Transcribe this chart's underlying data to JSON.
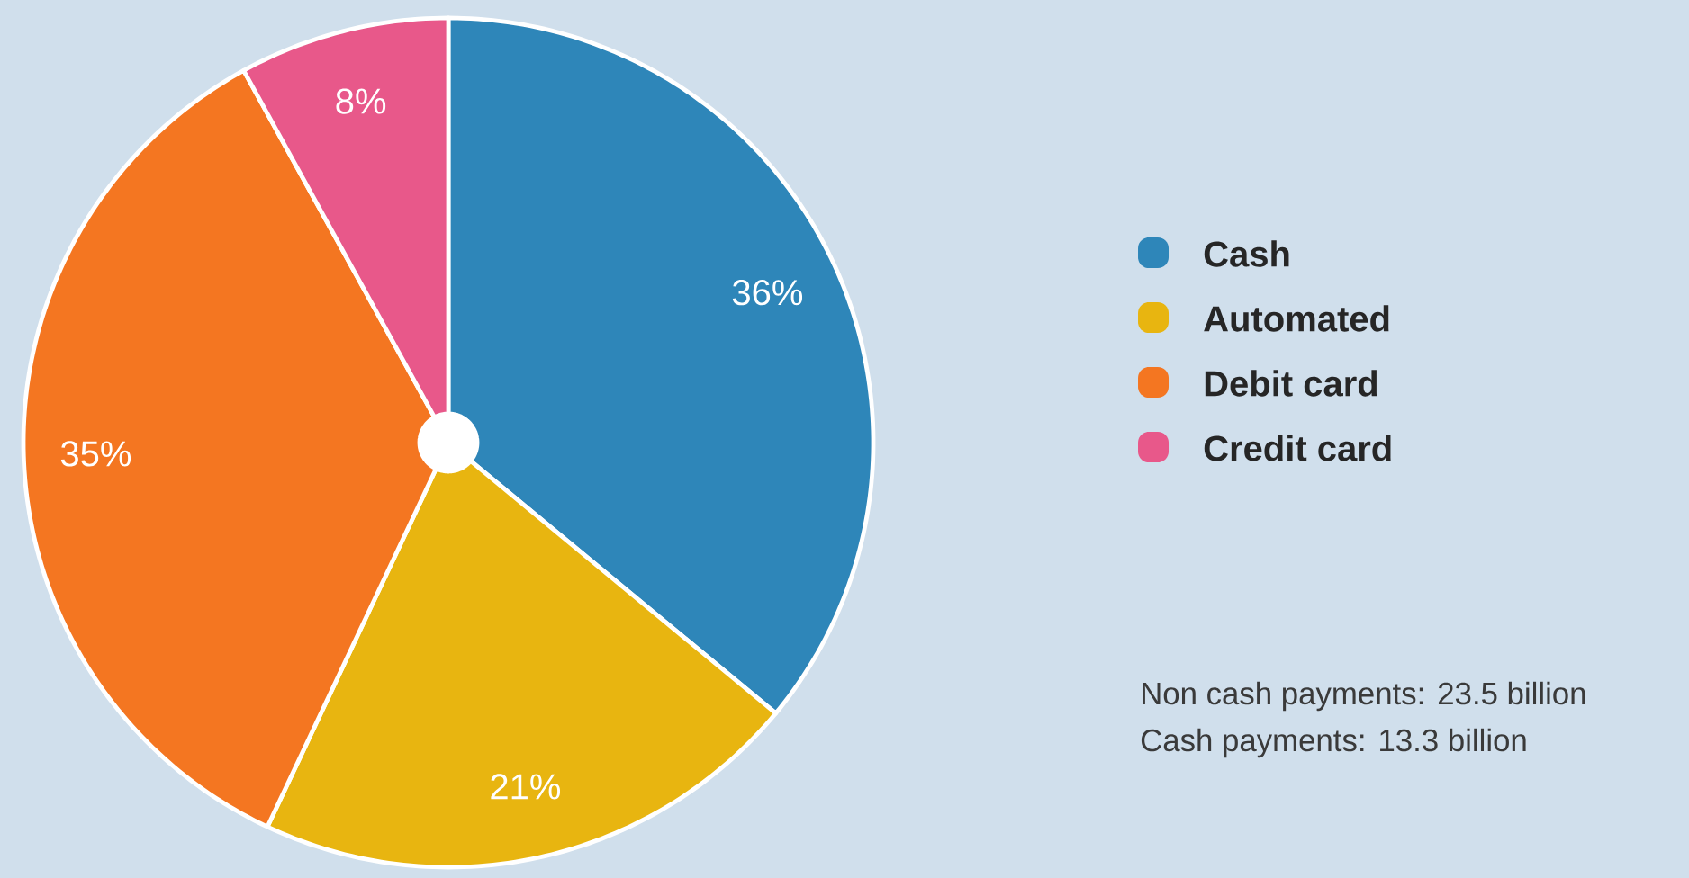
{
  "chart_data": {
    "type": "pie",
    "categories": [
      "Cash",
      "Automated",
      "Debit card",
      "Credit card"
    ],
    "values": [
      36,
      21,
      35,
      8
    ],
    "colors": [
      "#2e86b9",
      "#e8b510",
      "#f47621",
      "#e8588a"
    ],
    "value_labels": [
      "36%",
      "21%",
      "35%",
      "8%"
    ],
    "legend": "right",
    "annotations": [
      "Non cash payments: 23.5 billion",
      "Cash payments: 13.3 billion"
    ]
  }
}
